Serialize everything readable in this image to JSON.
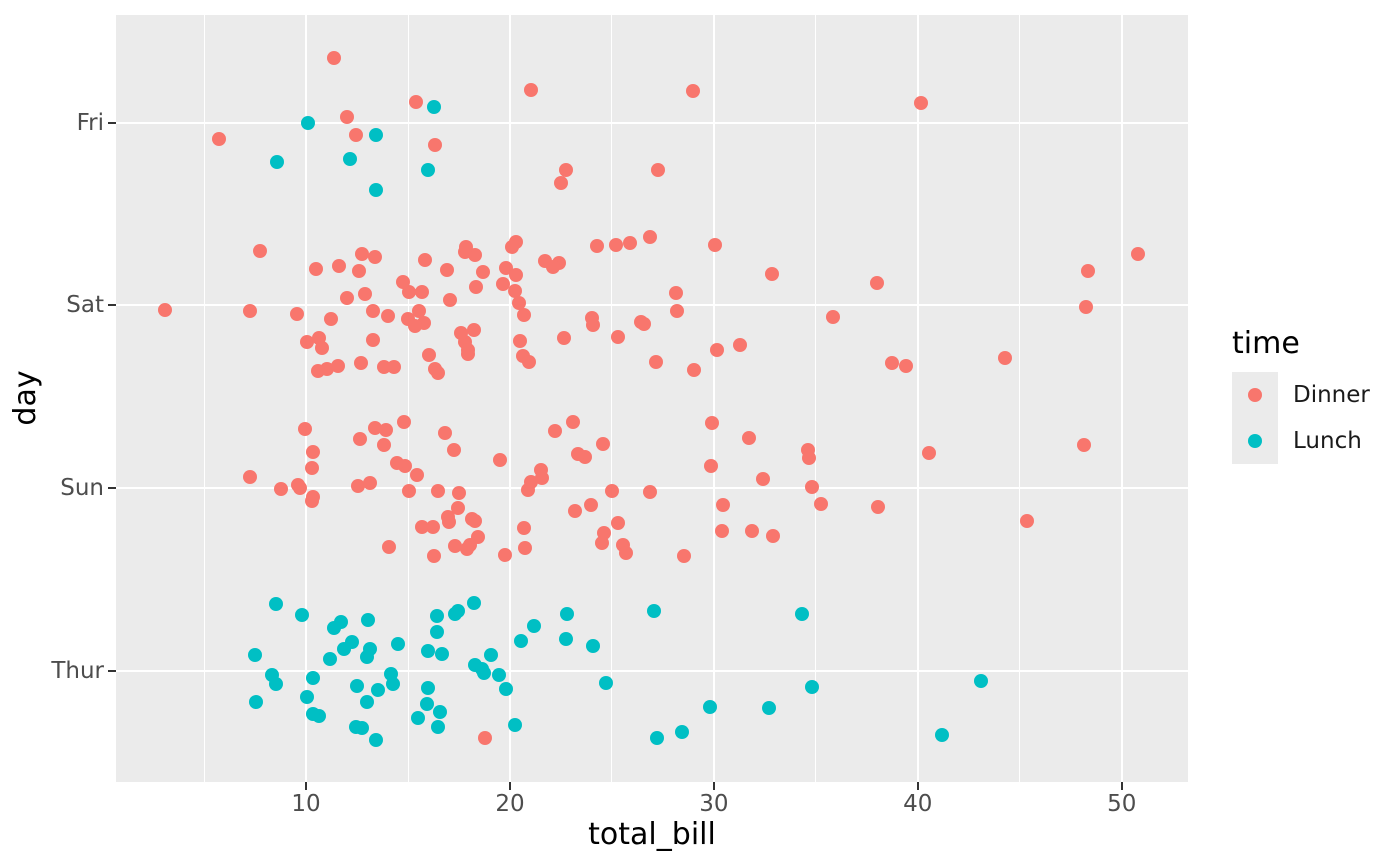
{
  "colors": {
    "background": "#FFFFFF",
    "panel": "#EBEBEB",
    "grid": "#FFFFFF",
    "tick_mark": "#333333",
    "tick_label": "#4D4D4D",
    "axis_title": "#000000",
    "legend_key": "#EBEBEB",
    "legend_text": "#1A1A1A",
    "dinner": "#F8766D",
    "lunch": "#00BFC4"
  },
  "chart_data": {
    "type": "scatter",
    "title": "",
    "xlabel": "total_bill",
    "ylabel": "day",
    "xlim": [
      0.68,
      53.25
    ],
    "x_ticks": [
      10,
      20,
      30,
      40,
      50
    ],
    "x_minor_ticks": [
      5,
      15,
      25,
      35,
      45
    ],
    "y_categories": [
      "Fri",
      "Sat",
      "Sun",
      "Thur"
    ],
    "grid": "on",
    "jitter": "vertical",
    "legend": {
      "title": "time",
      "position": "right",
      "entries": [
        {
          "label": "Dinner",
          "color": "#F8766D"
        },
        {
          "label": "Lunch",
          "color": "#00BFC4"
        }
      ]
    },
    "groups": [
      {
        "day": "Sun",
        "time": "Dinner",
        "values": [
          16.99,
          10.34,
          21.01,
          23.68,
          24.59,
          25.29,
          8.77,
          26.88,
          15.04,
          14.78,
          10.27,
          35.26,
          15.42,
          18.43,
          14.83,
          21.58,
          10.33,
          16.29,
          16.97
        ]
      },
      {
        "day": "Sat",
        "time": "Dinner",
        "values": [
          20.65,
          17.92,
          20.29,
          15.77,
          39.42,
          19.82,
          17.81,
          13.37,
          12.69,
          21.7,
          19.65,
          9.55,
          18.35,
          15.06,
          20.69,
          17.78,
          24.06,
          16.31,
          16.93,
          18.69,
          31.27,
          16.04
        ]
      },
      {
        "day": "Sun",
        "time": "Dinner",
        "values": [
          17.46,
          13.94,
          9.68,
          30.4,
          18.29,
          22.23,
          32.4,
          28.55,
          18.04,
          12.54,
          10.29,
          34.81,
          9.94,
          25.56,
          19.49
        ]
      },
      {
        "day": "Sat",
        "time": "Dinner",
        "values": [
          38.01,
          26.41,
          11.24,
          48.27,
          20.29,
          13.81,
          11.02,
          18.29,
          17.59,
          20.08,
          16.45,
          3.07,
          20.23,
          15.01,
          12.02,
          17.07,
          26.86,
          25.28,
          14.73,
          10.51,
          17.92
        ]
      },
      {
        "day": "Thur",
        "time": "Lunch",
        "values": [
          27.2,
          22.76,
          17.29,
          19.44,
          16.66,
          10.07,
          32.68,
          15.98,
          34.83,
          13.03,
          18.28,
          24.71,
          21.16
        ]
      },
      {
        "day": "Fri",
        "time": "Dinner",
        "values": [
          28.97,
          22.49,
          5.75,
          16.32,
          22.75,
          40.17,
          27.28,
          12.03,
          21.01,
          12.46,
          11.35,
          15.38
        ]
      },
      {
        "day": "Sat",
        "time": "Dinner",
        "values": [
          44.3,
          22.42,
          20.92,
          15.36,
          20.49,
          25.21,
          18.24,
          14.31,
          14.0,
          7.25
        ]
      },
      {
        "day": "Sun",
        "time": "Dinner",
        "values": [
          38.07,
          23.95,
          25.71,
          17.31,
          29.93
        ]
      },
      {
        "day": "Thur",
        "time": "Lunch",
        "values": [
          10.65,
          12.43,
          24.08,
          11.69,
          13.42,
          14.26,
          15.95,
          12.48,
          29.8,
          8.52,
          14.52,
          11.38,
          22.82,
          19.08,
          20.27,
          11.17,
          12.26,
          18.26,
          8.51,
          10.33,
          14.15,
          16.0,
          13.16,
          17.47,
          34.3,
          41.19,
          27.05,
          16.43,
          8.35,
          18.64,
          11.87,
          9.78,
          7.51
        ]
      },
      {
        "day": "Sun",
        "time": "Dinner",
        "values": [
          14.07,
          13.13,
          17.26,
          24.55,
          19.77,
          29.85,
          48.17,
          25.0,
          13.39,
          16.49,
          21.5,
          12.66,
          16.21,
          13.81,
          17.51,
          24.52,
          20.76,
          31.71
        ]
      },
      {
        "day": "Sat",
        "time": "Dinner",
        "values": [
          10.59,
          10.63,
          50.81,
          15.81
        ]
      },
      {
        "day": "Sun",
        "time": "Dinner",
        "values": [
          7.25,
          31.85,
          16.82,
          32.9,
          17.89,
          14.48,
          9.6,
          34.63,
          34.65,
          23.33,
          45.35,
          23.17,
          40.55,
          20.69,
          20.9,
          30.46,
          18.15,
          23.1,
          15.69
        ]
      },
      {
        "day": "Thur",
        "time": "Lunch",
        "values": [
          19.81,
          28.44,
          15.48,
          16.58,
          7.56,
          10.34,
          43.11,
          13.0,
          13.51,
          18.71,
          12.74,
          13.0,
          16.4,
          20.53,
          16.47
        ]
      },
      {
        "day": "Sat",
        "time": "Dinner",
        "values": [
          26.59,
          38.73,
          24.27,
          12.76,
          30.06,
          25.89,
          48.33,
          13.27,
          28.17,
          12.9,
          28.15,
          11.59,
          7.74,
          30.14
        ]
      },
      {
        "day": "Fri",
        "time": "Lunch",
        "values": [
          12.16,
          13.42,
          8.58,
          15.98,
          13.42,
          16.27,
          10.09
        ]
      },
      {
        "day": "Sat",
        "time": "Dinner",
        "values": [
          20.45,
          13.28,
          22.12,
          24.01,
          15.69,
          11.61,
          10.77,
          15.53,
          10.07,
          12.6,
          32.83,
          35.83,
          29.03,
          27.18,
          22.67,
          17.82
        ]
      },
      {
        "day": "Thur",
        "time": "Dinner",
        "values": [
          18.78
        ]
      }
    ]
  }
}
